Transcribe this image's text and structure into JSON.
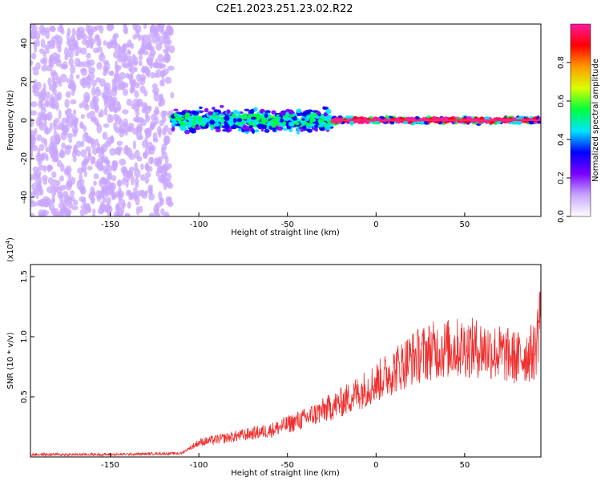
{
  "title": "C2E1.2023.251.23.02.R22",
  "chart_data": [
    {
      "type": "heatmap",
      "xlabel": "Height of straight line (km)",
      "ylabel": "Frequency (Hz)",
      "xlim": [
        -195,
        93
      ],
      "ylim": [
        -50,
        50
      ],
      "x_ticks": [
        -150,
        -100,
        -50,
        0,
        50
      ],
      "y_ticks": [
        -40,
        -20,
        0,
        20,
        40
      ],
      "colorbar": {
        "label": "Normalized spectral amplitude",
        "range": [
          0,
          1
        ],
        "ticks": [
          0.0,
          0.2,
          0.4,
          0.6,
          0.8
        ],
        "colors": [
          "#ffffff",
          "#c8a6ff",
          "#7a00ff",
          "#0000ff",
          "#00e5ff",
          "#00ff3c",
          "#d9ff00",
          "#ff9a00",
          "#ff0000",
          "#ff1aa0"
        ]
      },
      "regions": [
        {
          "x": [
            -195,
            -115
          ],
          "freq_spread": 50,
          "amplitude": 0.12,
          "note": "broad noise"
        },
        {
          "x": [
            -115,
            -25
          ],
          "freq_spread": 8,
          "amplitude": 0.35,
          "note": "band around 0 Hz"
        },
        {
          "x": [
            -25,
            93
          ],
          "freq_spread": 2,
          "amplitude": 0.95,
          "note": "narrow strong line at 0 Hz"
        }
      ]
    },
    {
      "type": "line",
      "xlabel": "Height of straight line (km)",
      "ylabel": "SNR (10 * v/v)",
      "y_multiplier": "(x10",
      "y_multiplier_exp": "4",
      "y_multiplier_close": ")",
      "xlim": [
        -195,
        93
      ],
      "ylim": [
        0,
        1.6
      ],
      "x_ticks": [
        -150,
        -100,
        -50,
        0,
        50
      ],
      "y_ticks": [
        0.5,
        1.0,
        1.5
      ],
      "y_tick_labels": [
        "0.5",
        "1.0",
        "1.5"
      ],
      "series": [
        {
          "color": "#ee3030",
          "x": [
            -195,
            -150,
            -110,
            -100,
            -80,
            -60,
            -40,
            -20,
            0,
            10,
            20,
            30,
            40,
            50,
            60,
            70,
            80,
            90,
            93
          ],
          "y": [
            0.02,
            0.02,
            0.03,
            0.12,
            0.17,
            0.22,
            0.32,
            0.45,
            0.62,
            0.72,
            0.82,
            0.88,
            0.9,
            0.91,
            0.9,
            0.86,
            0.82,
            0.88,
            1.3
          ]
        }
      ]
    }
  ]
}
